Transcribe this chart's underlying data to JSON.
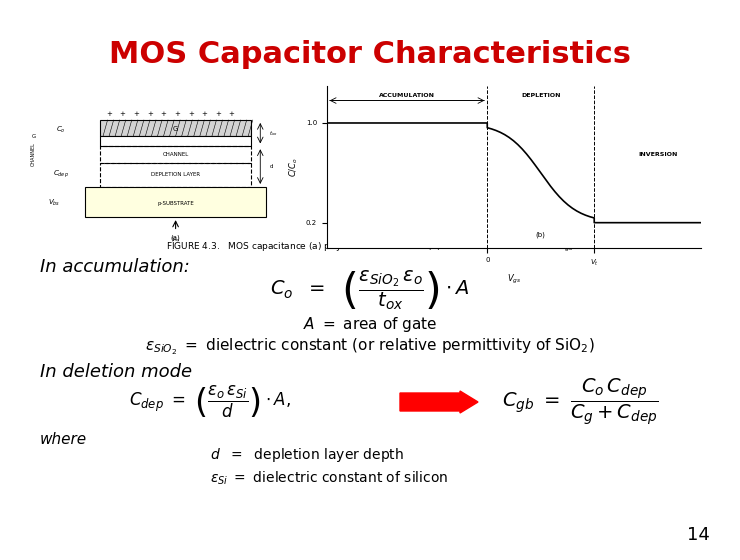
{
  "title": "MOS Capacitor Characteristics",
  "title_color": "#cc0000",
  "title_fontsize": 22,
  "bg_color": "#ffffff",
  "fig_caption": "FIGURE 4.3.   MOS capacitance (a) physical structure and (b) variation as a function of Vᵏₛ",
  "in_accumulation_label": "In accumulation:",
  "in_deletion_label": "In deletion mode",
  "where_label": "where",
  "line1_label": "A  =  area of gate",
  "line2_label": "$\\varepsilon_{SiO_2}$  =  dielectric constant (or relative permittivity of SiO$_2$)",
  "line3_label": "d   =  depletion layer depth",
  "line4_label": "$\\varepsilon_{Si}$   =  dielectric constant of silicon",
  "page_number": "14",
  "formula_accum": "$C_o = \\left( \\dfrac{\\varepsilon_{SiO_2}\\, \\varepsilon_o}{t_{ox}} \\right) \\cdot A$",
  "formula_dep": "$C_{dep} = \\left( \\dfrac{\\varepsilon_o \\varepsilon_{Si}}{d} \\right) \\cdot A,$",
  "formula_cgb": "$C_{gb} = \\dfrac{C_o C_{dep}}{C_g + C_{dep}}$"
}
